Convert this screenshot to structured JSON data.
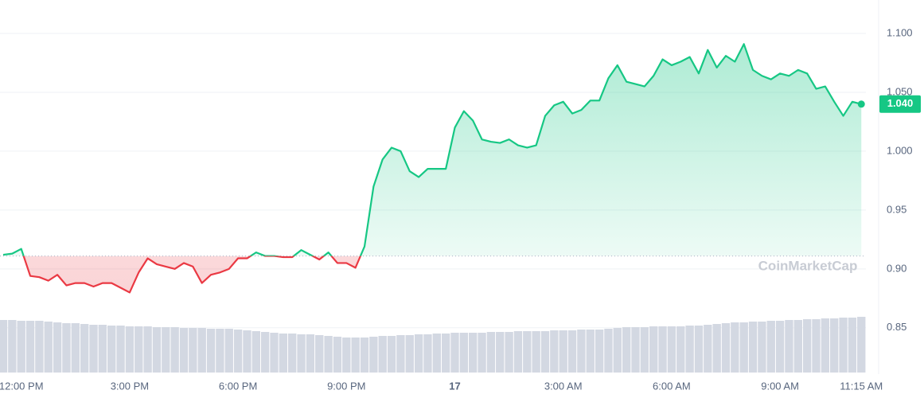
{
  "chart_data": {
    "type": "line",
    "categories": [
      null,
      null,
      "12:00 PM",
      null,
      null,
      null,
      null,
      null,
      null,
      null,
      null,
      null,
      null,
      null,
      "3:00 PM",
      null,
      null,
      null,
      null,
      null,
      null,
      null,
      null,
      null,
      null,
      null,
      "6:00 PM",
      null,
      null,
      null,
      null,
      null,
      null,
      null,
      null,
      null,
      null,
      null,
      "9:00 PM",
      null,
      null,
      null,
      null,
      null,
      null,
      null,
      null,
      null,
      null,
      null,
      "17",
      null,
      null,
      null,
      null,
      null,
      null,
      null,
      null,
      null,
      null,
      null,
      "3:00 AM",
      null,
      null,
      null,
      null,
      null,
      null,
      null,
      null,
      null,
      null,
      null,
      "6:00 AM",
      null,
      null,
      null,
      null,
      null,
      null,
      null,
      null,
      null,
      null,
      null,
      "9:00 AM",
      null,
      null,
      null,
      null,
      null,
      null,
      null,
      null,
      "11:15 AM"
    ],
    "values": [
      0.912,
      0.913,
      0.917,
      0.894,
      0.893,
      0.89,
      0.895,
      0.886,
      0.888,
      0.888,
      0.885,
      0.888,
      0.888,
      0.884,
      0.88,
      0.897,
      0.909,
      0.904,
      0.902,
      0.9,
      0.905,
      0.902,
      0.888,
      0.895,
      0.897,
      0.9,
      0.909,
      0.909,
      0.914,
      0.911,
      0.911,
      0.91,
      0.91,
      0.916,
      0.912,
      0.908,
      0.914,
      0.905,
      0.905,
      0.901,
      0.919,
      0.97,
      0.993,
      1.003,
      1.0,
      0.983,
      0.978,
      0.985,
      0.985,
      0.985,
      1.02,
      1.034,
      1.026,
      1.01,
      1.008,
      1.007,
      1.01,
      1.005,
      1.003,
      1.005,
      1.03,
      1.039,
      1.042,
      1.032,
      1.035,
      1.043,
      1.043,
      1.062,
      1.073,
      1.059,
      1.057,
      1.055,
      1.064,
      1.078,
      1.073,
      1.076,
      1.08,
      1.066,
      1.086,
      1.071,
      1.081,
      1.076,
      1.091,
      1.069,
      1.064,
      1.061,
      1.066,
      1.064,
      1.069,
      1.066,
      1.053,
      1.055,
      1.042,
      1.03,
      1.042,
      1.04
    ],
    "baseline": 0.911,
    "colors": {
      "up": "#16c784",
      "down": "#ea3943"
    },
    "current_price": {
      "value": 1.04,
      "label": "1.040"
    },
    "volume": [
      66,
      66,
      65,
      65,
      65,
      64,
      63,
      62,
      62,
      61,
      60,
      60,
      59,
      59,
      58,
      58,
      58,
      57,
      57,
      57,
      56,
      56,
      56,
      55,
      55,
      55,
      54,
      53,
      52,
      51,
      50,
      49,
      49,
      48,
      48,
      47,
      46,
      45,
      44,
      44,
      44,
      45,
      46,
      46,
      47,
      47,
      48,
      48,
      49,
      49,
      50,
      50,
      50,
      50,
      51,
      51,
      51,
      52,
      52,
      52,
      52,
      53,
      53,
      53,
      54,
      54,
      54,
      55,
      56,
      57,
      57,
      57,
      58,
      58,
      58,
      58,
      59,
      59,
      60,
      61,
      62,
      63,
      63,
      64,
      64,
      65,
      65,
      66,
      66,
      67,
      67,
      68,
      68,
      69,
      69,
      70
    ],
    "volume_color": "#d3d8e2",
    "ylim": [
      0.812,
      1.1284
    ],
    "yticks": [
      {
        "value": 0.85,
        "label": "0.85"
      },
      {
        "value": 0.9,
        "label": "0.90"
      },
      {
        "value": 0.95,
        "label": "0.95"
      },
      {
        "value": 1.0,
        "label": "1.000"
      },
      {
        "value": 1.05,
        "label": "1.050"
      },
      {
        "value": 1.1,
        "label": "1.100"
      }
    ],
    "grid": true,
    "watermark": "CoinMarketCap"
  }
}
